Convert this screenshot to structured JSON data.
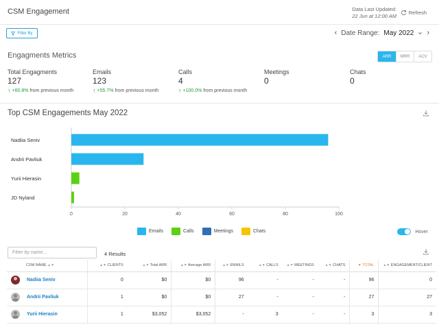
{
  "header": {
    "title": "CSM Engagement",
    "updated_label": "Data Last Updated:",
    "updated_value": "22 Jun at 12:00 AM",
    "refresh_label": "Refresh"
  },
  "filter": {
    "label": "Filter By"
  },
  "date_range": {
    "label": "Date Range:",
    "value": "May 2022"
  },
  "metrics": {
    "title": "Engagments Metrics",
    "toggle": [
      "ARR",
      "MRR",
      "ACV"
    ],
    "active_toggle": "ARR",
    "items": [
      {
        "label": "Total Engagments",
        "value": "127",
        "change": "+60.8%",
        "suffix": "from previous month"
      },
      {
        "label": "Emails",
        "value": "123",
        "change": "+55.7%",
        "suffix": "from previous month"
      },
      {
        "label": "Calls",
        "value": "4",
        "change": "+100.0%",
        "suffix": "from previous month"
      },
      {
        "label": "Meetings",
        "value": "0"
      },
      {
        "label": "Chats",
        "value": "0"
      }
    ]
  },
  "chart_data": {
    "type": "bar",
    "orientation": "horizontal",
    "stacked": true,
    "title": "Top CSM Engagements May 2022",
    "categories": [
      "Nadiia Seniv",
      "Andrii Pavliuk",
      "Yurii Hierasin",
      "JD Nyland"
    ],
    "series": [
      {
        "name": "Emails",
        "color": "#29b6ee",
        "values": [
          96,
          27,
          0,
          0
        ]
      },
      {
        "name": "Calls",
        "color": "#5bd113",
        "values": [
          0,
          0,
          3,
          1
        ]
      },
      {
        "name": "Meetings",
        "color": "#2f6fb5",
        "values": [
          0,
          0,
          0,
          0
        ]
      },
      {
        "name": "Chats",
        "color": "#f5c400",
        "values": [
          0,
          0,
          0,
          0
        ]
      }
    ],
    "xlim": [
      0,
      100
    ],
    "xticks": [
      "0",
      "20",
      "40",
      "60",
      "80",
      "100"
    ],
    "legend_position": "bottom",
    "grid": false
  },
  "hover_label": "Hover",
  "table": {
    "search_placeholder": "Filter by name...",
    "results": "4 Results",
    "columns": [
      "CSM NAME",
      "CLIENTS",
      "Total ARR",
      "Average ARR",
      "EMAILS",
      "CALLS",
      "MEETINGS",
      "CHATS",
      "TOTAL",
      "ENGAGEMENT/CLIENT"
    ],
    "rows": [
      {
        "name": "Nadiia Seniv",
        "clients": "0",
        "total_arr": "$0",
        "avg_arr": "$0",
        "emails": "96",
        "calls": "-",
        "meetings": "-",
        "chats": "-",
        "total": "96",
        "eng": "0"
      },
      {
        "name": "Andrii Pavliuk",
        "clients": "1",
        "total_arr": "$0",
        "avg_arr": "$0",
        "emails": "27",
        "calls": "-",
        "meetings": "-",
        "chats": "-",
        "total": "27",
        "eng": "27"
      },
      {
        "name": "Yurii Hierasin",
        "clients": "1",
        "total_arr": "$3,052",
        "avg_arr": "$3,052",
        "emails": "-",
        "calls": "3",
        "meetings": "-",
        "chats": "-",
        "total": "3",
        "eng": "3"
      }
    ]
  }
}
